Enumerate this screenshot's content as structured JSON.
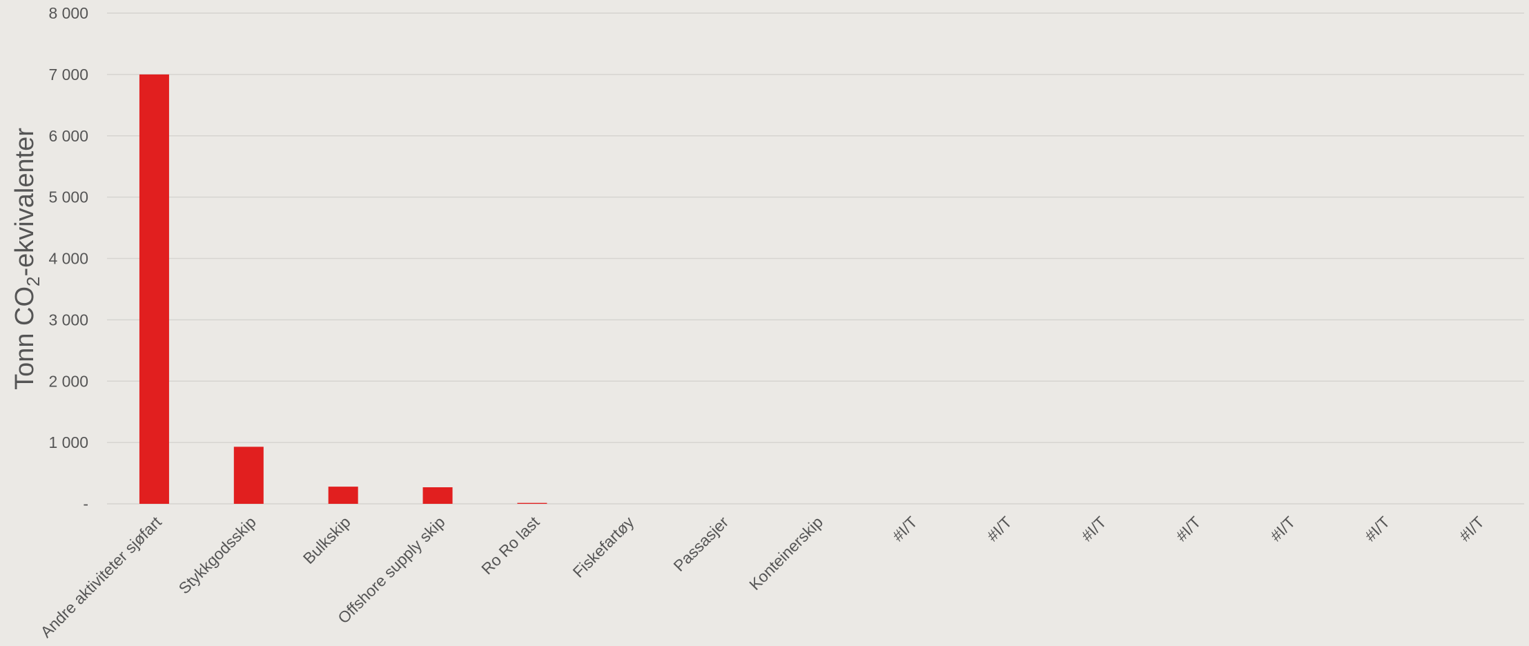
{
  "chart_data": {
    "type": "bar",
    "title": "",
    "ylabel_parts": {
      "pre": "Tonn CO",
      "sub": "2",
      "post": "-ekvivalenter"
    },
    "xlabel": "",
    "categories": [
      "Andre aktiviteter sjøfart",
      "Stykkgodsskip",
      "Bulkskip",
      "Offshore supply skip",
      "Ro Ro last",
      "Fiskefartøy",
      "Passasjer",
      "Konteinerskip",
      "#I/T",
      "#I/T",
      "#I/T",
      "#I/T",
      "#I/T",
      "#I/T",
      "#I/T"
    ],
    "values": [
      7000,
      930,
      280,
      270,
      15,
      0,
      0,
      0,
      0,
      0,
      0,
      0,
      0,
      0,
      0
    ],
    "ylim": [
      0,
      8000
    ],
    "yticks": [
      0,
      1000,
      2000,
      3000,
      4000,
      5000,
      6000,
      7000,
      8000
    ],
    "ytick_labels": [
      "-",
      "1 000",
      "2 000",
      "3 000",
      "4 000",
      "5 000",
      "6 000",
      "7 000",
      "8 000"
    ],
    "grid": true,
    "legend": "none",
    "colors": {
      "bar": "#e11f1f",
      "grid": "#d6d4d0",
      "text": "#555555",
      "background": "#ebe9e5"
    }
  }
}
